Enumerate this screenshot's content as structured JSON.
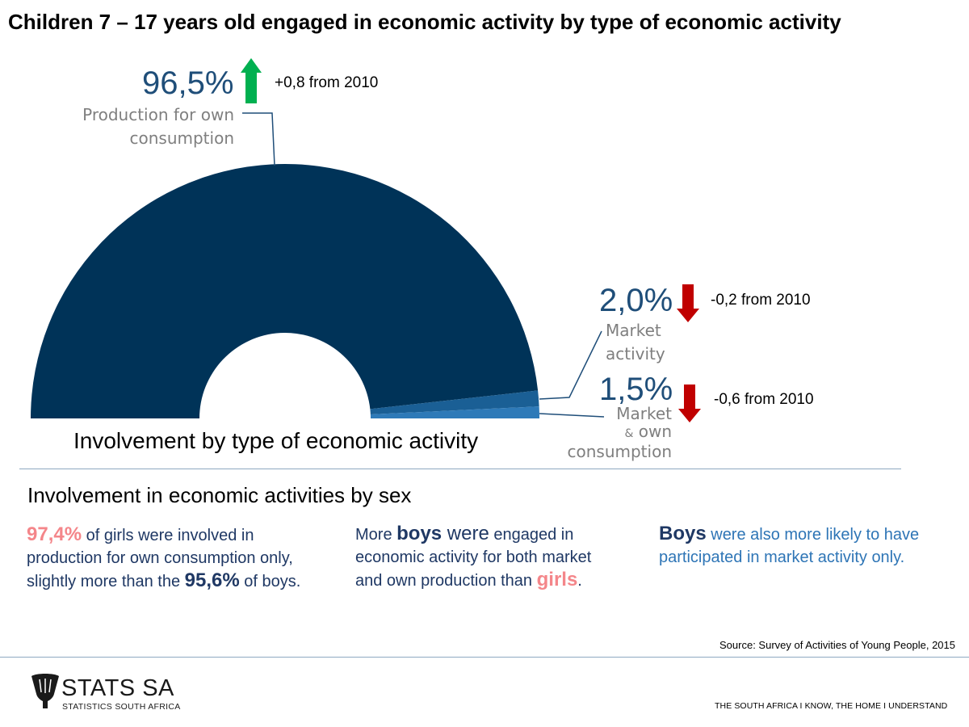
{
  "title": "Children 7 – 17 years old engaged in economic activity by type of economic activity",
  "chart_data": {
    "type": "pie",
    "subtype": "half-donut",
    "title": "Involvement by type of economic activity",
    "categories": [
      "Production for own consumption",
      "Market activity",
      "Market & own consumption"
    ],
    "values": [
      96.5,
      2.0,
      1.5
    ],
    "unit": "%",
    "changes": [
      "+0,8 from 2010",
      "-0,2 from 2010",
      "-0,6 from 2010"
    ],
    "colors": [
      "#003358",
      "#1a5f95",
      "#2e7ab8"
    ]
  },
  "callouts": [
    {
      "percent": "96,5%",
      "label_line1": "Production for own",
      "label_line2": "consumption",
      "change": "+0,8 from 2010",
      "direction": "up",
      "arrow_color": "#00b050"
    },
    {
      "percent": "2,0%",
      "label_line1": "Market",
      "label_line2": "activity",
      "change": "-0,2 from 2010",
      "direction": "down",
      "arrow_color": "#c00000"
    },
    {
      "percent": "1,5%",
      "label_line1": "Market",
      "label_amp": "&",
      "label_own": "own",
      "label_line3": "consumption",
      "change": "-0,6 from 2010",
      "direction": "down",
      "arrow_color": "#c00000"
    }
  ],
  "section_title": "Involvement in economic activities by sex",
  "col1": {
    "p1": "97,4%",
    "t1": " of girls were involved in production for own consumption only, slightly more than the ",
    "p2": "95,6%",
    "t2": " of boys."
  },
  "col2": {
    "t1": "More ",
    "b1": "boys",
    "t2": " were",
    "t3": " engaged in economic activity for both market and own production than ",
    "g1": "girls",
    "t4": "."
  },
  "col3": {
    "b1": "Boys",
    "t1": " were also more likely to have participated in market activity only."
  },
  "source": "Source: Survey of Activities of Young People, 2015",
  "footer": {
    "logo": "STATS SA",
    "logo_sub": "STATISTICS SOUTH AFRICA",
    "tagline": "THE SOUTH AFRICA I KNOW, THE HOME I UNDERSTAND"
  }
}
